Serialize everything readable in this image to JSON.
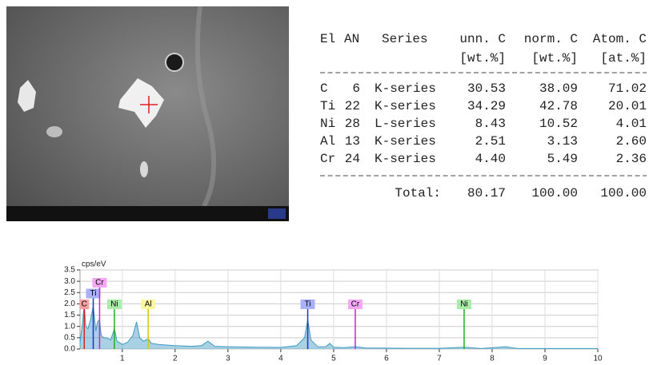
{
  "table": {
    "header": [
      "El",
      "AN",
      "Series",
      "unn. C",
      "norm. C",
      "Atom. C"
    ],
    "units": [
      "[wt.%]",
      "[wt.%]",
      "[at.%]"
    ],
    "rows": [
      [
        "C",
        "6",
        "K-series",
        "30.53",
        "38.09",
        "71.02"
      ],
      [
        "Ti",
        "22",
        "K-series",
        "34.29",
        "42.78",
        "20.01"
      ],
      [
        "Ni",
        "28",
        "L-series",
        "8.43",
        "10.52",
        "4.01"
      ],
      [
        "Al",
        "13",
        "K-series",
        "2.51",
        "3.13",
        "2.60"
      ],
      [
        "Cr",
        "24",
        "K-series",
        "4.40",
        "5.49",
        "2.36"
      ]
    ],
    "total": {
      "label": "Total:",
      "values": [
        "80.17",
        "100.00",
        "100.00"
      ]
    }
  },
  "chart_data": {
    "type": "area",
    "y_label": "cps/eV",
    "x": [
      0.2,
      0.25,
      0.28,
      0.31,
      0.35,
      0.4,
      0.45,
      0.5,
      0.53,
      0.57,
      0.6,
      0.65,
      0.7,
      0.78,
      0.85,
      0.9,
      1.0,
      1.1,
      1.2,
      1.27,
      1.33,
      1.4,
      1.49,
      1.55,
      1.7,
      2.0,
      2.3,
      2.5,
      2.62,
      2.75,
      3.0,
      3.5,
      4.0,
      4.3,
      4.45,
      4.51,
      4.57,
      4.7,
      4.85,
      4.93,
      5.0,
      5.2,
      5.41,
      5.6,
      6.0,
      6.5,
      7.0,
      7.47,
      7.8,
      8.26,
      8.5,
      9.0,
      10.0
    ],
    "series": [
      {
        "color": "#3d9ac2",
        "values": [
          0.3,
          1.2,
          2.0,
          1.0,
          0.9,
          1.3,
          1.9,
          0.8,
          1.2,
          1.3,
          0.6,
          0.5,
          0.5,
          0.4,
          0.9,
          0.35,
          0.2,
          0.3,
          0.6,
          1.2,
          0.5,
          0.35,
          0.45,
          0.25,
          0.2,
          0.15,
          0.12,
          0.15,
          0.35,
          0.12,
          0.1,
          0.08,
          0.07,
          0.15,
          0.5,
          1.3,
          0.4,
          0.1,
          0.1,
          0.25,
          0.08,
          0.06,
          0.1,
          0.05,
          0.04,
          0.03,
          0.03,
          0.08,
          0.02,
          0.1,
          0.02,
          0.02,
          0.02
        ]
      }
    ],
    "xlim": [
      0.2,
      10
    ],
    "xticks": [
      1,
      2,
      3,
      4,
      5,
      6,
      7,
      8,
      9,
      10
    ],
    "ylim": [
      0,
      3.5
    ],
    "yticks": [
      {
        "value": 0,
        "label": "0.0"
      },
      0.5,
      {
        "value": 1,
        "label": "1.0"
      },
      1.5,
      {
        "value": 2,
        "label": "2.0"
      },
      2.5,
      {
        "value": 3,
        "label": "3.0"
      },
      3.5
    ],
    "grid": true,
    "markers": [
      {
        "label": "C",
        "x": 0.28,
        "color": "#e02020",
        "bg": "#f4a0a0"
      },
      {
        "label": "Ti",
        "x": 0.45,
        "color": "#2030d0",
        "bg": "#a8b0ff"
      },
      {
        "label": "Cr",
        "x": 0.57,
        "color": "#d020d0",
        "bg": "#f4a8f4"
      },
      {
        "label": "Ni",
        "x": 0.85,
        "color": "#20b020",
        "bg": "#a8eca8"
      },
      {
        "label": "Al",
        "x": 1.49,
        "color": "#d8c800",
        "bg": "#fbf7a0"
      },
      {
        "label": "Ti",
        "x": 4.51,
        "color": "#2030d0",
        "bg": "#a8b0ff"
      },
      {
        "label": "Cr",
        "x": 5.41,
        "color": "#d020d0",
        "bg": "#f4a8f4"
      },
      {
        "label": "Ni",
        "x": 7.47,
        "color": "#20b020",
        "bg": "#a8eca8"
      }
    ]
  }
}
